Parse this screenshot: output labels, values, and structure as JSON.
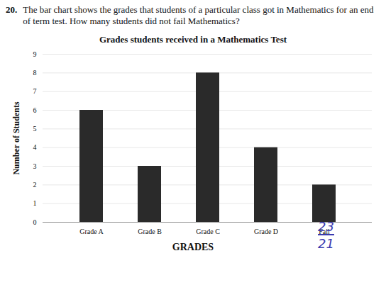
{
  "question": {
    "number": "20.",
    "text": "The bar chart shows the grades that students of a particular class got in Mathematics for an end of term test. How many students did not fail Mathematics?"
  },
  "handwriting": [
    "23",
    "21"
  ],
  "chart_data": {
    "type": "bar",
    "title": "Grades students received in a Mathematics Test",
    "x_label": "GRADES",
    "y_label": "Number of Students",
    "categories": [
      "Grade A",
      "Grade B",
      "Grade C",
      "Grade D",
      "Fail"
    ],
    "values": [
      6,
      3,
      8,
      4,
      2
    ],
    "color": "#2a2a2a",
    "ylim": [
      0,
      9
    ],
    "yticks": [
      0,
      1,
      2,
      3,
      4,
      5,
      6,
      7,
      8,
      9
    ],
    "grid": true
  }
}
